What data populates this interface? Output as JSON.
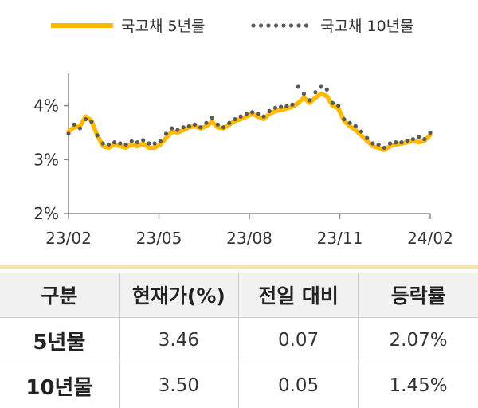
{
  "chart_data": {
    "type": "line",
    "legend_position": "top",
    "grid": false,
    "y_axis": {
      "ticks": [
        "2%",
        "3%",
        "4%"
      ],
      "ylim": [
        2.0,
        4.6
      ]
    },
    "x_axis": {
      "ticks": [
        "23/02",
        "23/05",
        "23/08",
        "23/11",
        "24/02"
      ]
    },
    "series": [
      {
        "name": "국고채 5년물",
        "color": "#FFB900",
        "style": "solid",
        "x": [
          0,
          2,
          4,
          6,
          8,
          10,
          12,
          14,
          16,
          18,
          20,
          22,
          24,
          26,
          28,
          30,
          32,
          34,
          36,
          38,
          40,
          42,
          44,
          46,
          48,
          50,
          52,
          54,
          56,
          58,
          60,
          62,
          64,
          66,
          68,
          70,
          72,
          74,
          76,
          78,
          80,
          82,
          84,
          86,
          88,
          90,
          92,
          94,
          96,
          98,
          100,
          102,
          104,
          106,
          108,
          110,
          112,
          114,
          116,
          118,
          120,
          122,
          124,
          126
        ],
        "y": [
          3.52,
          3.6,
          3.62,
          3.8,
          3.72,
          3.45,
          3.25,
          3.22,
          3.28,
          3.25,
          3.22,
          3.28,
          3.25,
          3.3,
          3.22,
          3.22,
          3.28,
          3.4,
          3.52,
          3.5,
          3.55,
          3.6,
          3.62,
          3.58,
          3.62,
          3.7,
          3.6,
          3.58,
          3.65,
          3.72,
          3.75,
          3.8,
          3.85,
          3.8,
          3.75,
          3.85,
          3.9,
          3.92,
          3.95,
          3.98,
          4.05,
          4.15,
          4.05,
          4.15,
          4.22,
          4.18,
          4.0,
          3.95,
          3.72,
          3.62,
          3.55,
          3.45,
          3.35,
          3.25,
          3.22,
          3.18,
          3.25,
          3.28,
          3.3,
          3.32,
          3.35,
          3.32,
          3.35,
          3.46
        ]
      },
      {
        "name": "국고채 10년물",
        "color": "#595959",
        "style": "dotted",
        "x": [
          0,
          2,
          4,
          6,
          8,
          10,
          12,
          14,
          16,
          18,
          20,
          22,
          24,
          26,
          28,
          30,
          32,
          34,
          36,
          38,
          40,
          42,
          44,
          46,
          48,
          50,
          52,
          54,
          56,
          58,
          60,
          62,
          64,
          66,
          68,
          70,
          72,
          74,
          76,
          78,
          80,
          82,
          84,
          86,
          88,
          90,
          92,
          94,
          96,
          98,
          100,
          102,
          104,
          106,
          108,
          110,
          112,
          114,
          116,
          118,
          120,
          122,
          124,
          126
        ],
        "y": [
          3.48,
          3.65,
          3.58,
          3.75,
          3.7,
          3.45,
          3.3,
          3.28,
          3.32,
          3.3,
          3.28,
          3.34,
          3.32,
          3.36,
          3.3,
          3.3,
          3.34,
          3.48,
          3.58,
          3.55,
          3.6,
          3.62,
          3.65,
          3.6,
          3.68,
          3.78,
          3.65,
          3.6,
          3.68,
          3.75,
          3.8,
          3.85,
          3.88,
          3.85,
          3.8,
          3.9,
          3.96,
          3.98,
          3.99,
          4.02,
          4.35,
          4.22,
          4.1,
          4.25,
          4.35,
          4.3,
          4.05,
          4.0,
          3.75,
          3.68,
          3.62,
          3.52,
          3.4,
          3.3,
          3.28,
          3.22,
          3.3,
          3.32,
          3.32,
          3.35,
          3.38,
          3.42,
          3.38,
          3.5
        ]
      }
    ]
  },
  "table": {
    "headers": [
      "구분",
      "현재가(%)",
      "전일 대비",
      "등락률"
    ],
    "rows": [
      [
        "5년물",
        "3.46",
        "0.07",
        "2.07%"
      ],
      [
        "10년물",
        "3.50",
        "0.05",
        "1.45%"
      ]
    ]
  }
}
